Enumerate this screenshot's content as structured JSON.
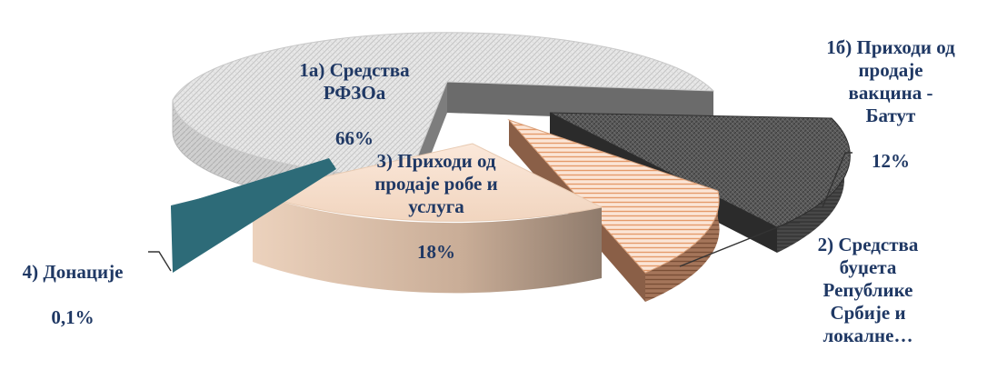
{
  "chart_data": {
    "type": "pie",
    "style": "3d-exploded",
    "slices": [
      {
        "id": "s1a",
        "label": "1а) Средства\nРФЗОа",
        "percent_label": "66%",
        "value": 66,
        "color": "#d9d9d9"
      },
      {
        "id": "s1b",
        "label": "1б) Приходи од\nпродаје\nвакцина -\nБатут",
        "percent_label": "12%",
        "value": 12,
        "color": "#595959"
      },
      {
        "id": "s2",
        "label": "2) Средства\nбуџета\nРепублике\nСрбије и\nлокалне…",
        "percent_label": "",
        "value": 4,
        "color": "#e8a77c"
      },
      {
        "id": "s3",
        "label": "3) Приходи од\nпродаје робе и\nуслуга",
        "percent_label": "18%",
        "value": 18,
        "color": "#f3d9c4"
      },
      {
        "id": "s4",
        "label": "4) Донације",
        "percent_label": "0,1%",
        "value": 0.1,
        "color": "#2e6b77"
      }
    ]
  }
}
